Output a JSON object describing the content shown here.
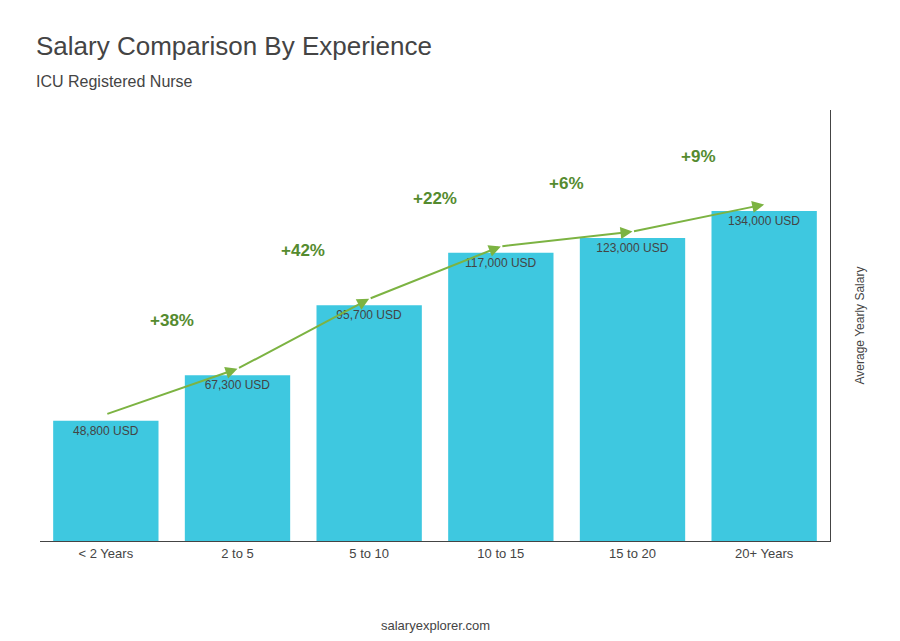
{
  "chart_data": {
    "type": "bar",
    "title": "Salary Comparison By Experience",
    "subtitle": "ICU Registered Nurse",
    "ylabel": "Average Yearly Salary",
    "footer": "salaryexplorer.com",
    "categories": [
      "< 2 Years",
      "2 to 5",
      "5 to 10",
      "10 to 15",
      "15 to 20",
      "20+ Years"
    ],
    "values": [
      48800,
      67300,
      95700,
      117000,
      123000,
      134000
    ],
    "value_labels": [
      "48,800 USD",
      "67,300 USD",
      "95,700 USD",
      "117,000 USD",
      "123,000 USD",
      "134,000 USD"
    ],
    "data_labels": true,
    "annotations": [
      "+38%",
      "+42%",
      "+22%",
      "+6%",
      "+9%"
    ],
    "color": "#3EC8E0",
    "ylim": [
      0,
      175000
    ],
    "yticks": [],
    "tick_labels": "x",
    "grid": false
  }
}
